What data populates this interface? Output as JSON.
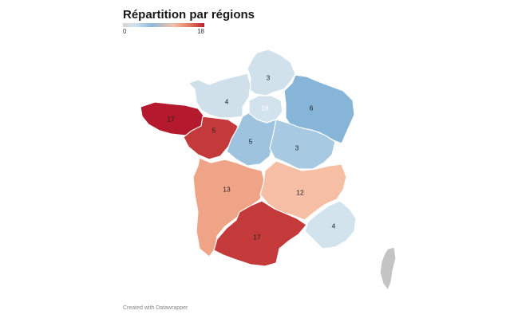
{
  "title": "Répartition par régions",
  "legend": {
    "min": "0",
    "max": "18"
  },
  "regions": [
    {
      "id": "hauts-de-france",
      "value": "3",
      "color": "#d0e1ec"
    },
    {
      "id": "normandie",
      "value": "4",
      "color": "#cfe0eb"
    },
    {
      "id": "ile-de-france",
      "value": "18",
      "color": "#b5192d"
    },
    {
      "id": "grand-est",
      "value": "6",
      "color": "#86b5d7"
    },
    {
      "id": "bretagne",
      "value": "17",
      "color": "#c4393a"
    },
    {
      "id": "pays-de-la-loire",
      "value": "5",
      "color": "#9dc3df"
    },
    {
      "id": "centre-val-de-loire",
      "value": "5",
      "color": "#a7c9e2"
    },
    {
      "id": "bourgogne-franche-comte",
      "value": "3",
      "color": "#d3e3ee"
    },
    {
      "id": "nouvelle-aquitaine",
      "value": "13",
      "color": "#f0a487"
    },
    {
      "id": "auvergne-rhone-alpes",
      "value": "12",
      "color": "#f6bea4"
    },
    {
      "id": "occitanie",
      "value": "17",
      "color": "#c43a3a"
    },
    {
      "id": "provence-alpes-cote-dazur",
      "value": "4",
      "color": "#d3e3ee"
    },
    {
      "id": "corse",
      "value": "",
      "color": "#c4c4c4"
    }
  ],
  "footer": "Created with Datawrapper"
}
